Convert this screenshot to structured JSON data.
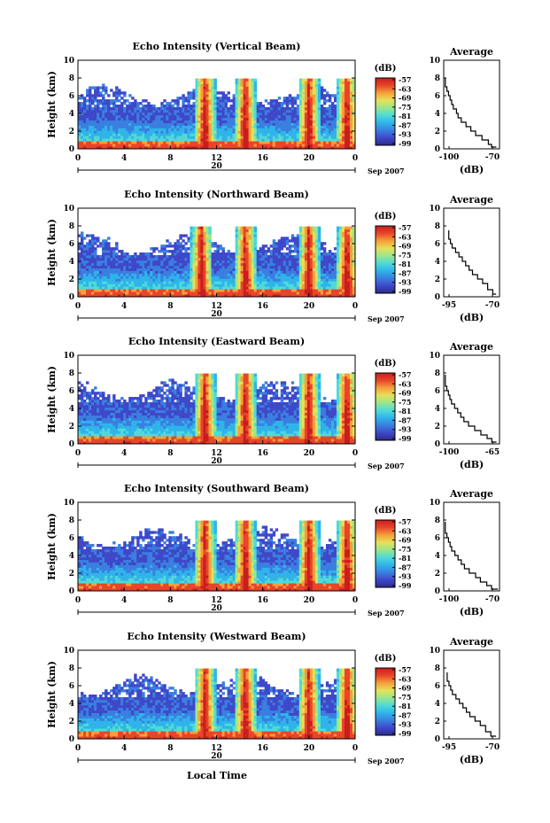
{
  "figure": {
    "xlabel_bottom": "Local Time",
    "date_label": "Sep 2007",
    "colorbar_unit": "(dB)",
    "colorbar_ticks": [
      "-57",
      "-63",
      "-69",
      "-75",
      "-81",
      "-87",
      "-93",
      "-99"
    ],
    "colormap": [
      "#2b2b8a",
      "#3f48c8",
      "#3a7fe0",
      "#2fb4ea",
      "#4fdad8",
      "#9ae68c",
      "#e6e05a",
      "#f5a03a",
      "#e8452a",
      "#c81e1e"
    ],
    "bg_color": "#ffffff"
  },
  "chart_data": [
    {
      "type": "heatmap",
      "title": "Echo Intensity (Vertical Beam)",
      "ylabel": "Height (km)",
      "xlim": [
        0,
        24
      ],
      "ylim": [
        0,
        10
      ],
      "x_ticks": [
        "0",
        "4",
        "8",
        "12",
        "16",
        "20",
        "0"
      ],
      "y_ticks": [
        "0",
        "2",
        "4",
        "6",
        "8",
        "10"
      ],
      "secondary_tick": "20",
      "colorbar": {
        "label": "(dB)",
        "range": [
          -99,
          -57
        ],
        "ticks": [
          "-57",
          "-63",
          "-69",
          "-75",
          "-81",
          "-87",
          "-93",
          "-99"
        ]
      },
      "high_echo_hours": [
        11,
        14.5,
        20,
        23.3
      ],
      "average": {
        "title": "Average",
        "xlabel": "(dB)",
        "xlim": [
          -100,
          -65
        ],
        "x_ticks": [
          "-100",
          "-70"
        ],
        "y_ticks": [
          "0",
          "2",
          "4",
          "6",
          "8",
          "10"
        ],
        "profile": [
          [
            -67,
            0.2
          ],
          [
            -70,
            0.5
          ],
          [
            -72,
            1.0
          ],
          [
            -76,
            1.5
          ],
          [
            -80,
            2.0
          ],
          [
            -83,
            2.5
          ],
          [
            -86,
            3.0
          ],
          [
            -89,
            3.5
          ],
          [
            -91,
            4.0
          ],
          [
            -92,
            4.5
          ],
          [
            -94,
            5.0
          ],
          [
            -95,
            5.5
          ],
          [
            -96,
            6.0
          ],
          [
            -97,
            6.5
          ],
          [
            -98,
            7.0
          ],
          [
            -99,
            7.5
          ],
          [
            -99,
            8.0
          ]
        ]
      }
    },
    {
      "type": "heatmap",
      "title": "Echo Intensity (Northward Beam)",
      "ylabel": "Height (km)",
      "xlim": [
        0,
        24
      ],
      "ylim": [
        0,
        10
      ],
      "x_ticks": [
        "0",
        "4",
        "8",
        "12",
        "16",
        "20",
        "0"
      ],
      "y_ticks": [
        "0",
        "2",
        "4",
        "6",
        "8",
        "10"
      ],
      "secondary_tick": "20",
      "colorbar": {
        "label": "(dB)",
        "range": [
          -99,
          -57
        ],
        "ticks": [
          "-57",
          "-63",
          "-69",
          "-75",
          "-81",
          "-87",
          "-93",
          "-99"
        ]
      },
      "high_echo_hours": [
        10.7,
        14.5,
        20,
        23.3
      ],
      "average": {
        "title": "Average",
        "xlabel": "(dB)",
        "xlim": [
          -100,
          -67
        ],
        "x_ticks": [
          "-95",
          "-70"
        ],
        "y_ticks": [
          "0",
          "2",
          "4",
          "6",
          "8",
          "10"
        ],
        "profile": [
          [
            -69,
            0.3
          ],
          [
            -71,
            0.8
          ],
          [
            -74,
            1.5
          ],
          [
            -77,
            2.0
          ],
          [
            -80,
            2.5
          ],
          [
            -83,
            3.0
          ],
          [
            -85,
            3.5
          ],
          [
            -87,
            4.0
          ],
          [
            -89,
            4.5
          ],
          [
            -91,
            5.0
          ],
          [
            -93,
            5.5
          ],
          [
            -95,
            6.0
          ],
          [
            -96,
            6.5
          ],
          [
            -97,
            7.0
          ],
          [
            -97,
            7.5
          ]
        ]
      }
    },
    {
      "type": "heatmap",
      "title": "Echo Intensity (Eastward Beam)",
      "ylabel": "Height (km)",
      "xlim": [
        0,
        24
      ],
      "ylim": [
        0,
        10
      ],
      "x_ticks": [
        "0",
        "4",
        "8",
        "12",
        "16",
        "20",
        "0"
      ],
      "y_ticks": [
        "0",
        "2",
        "4",
        "6",
        "8",
        "10"
      ],
      "secondary_tick": "20",
      "colorbar": {
        "label": "(dB)",
        "range": [
          -99,
          -57
        ],
        "ticks": [
          "-57",
          "-63",
          "-69",
          "-75",
          "-81",
          "-87",
          "-93",
          "-99"
        ]
      },
      "high_echo_hours": [
        11,
        14.5,
        20,
        23.3
      ],
      "average": {
        "title": "Average",
        "xlabel": "(dB)",
        "xlim": [
          -100,
          -64
        ],
        "x_ticks": [
          "-100",
          "-65"
        ],
        "y_ticks": [
          "0",
          "2",
          "4",
          "6",
          "8",
          "10"
        ],
        "profile": [
          [
            -66,
            0.2
          ],
          [
            -69,
            0.6
          ],
          [
            -72,
            1.0
          ],
          [
            -76,
            1.5
          ],
          [
            -80,
            2.0
          ],
          [
            -84,
            2.5
          ],
          [
            -87,
            3.0
          ],
          [
            -89,
            3.5
          ],
          [
            -91,
            4.0
          ],
          [
            -93,
            4.5
          ],
          [
            -95,
            5.0
          ],
          [
            -96,
            5.5
          ],
          [
            -97,
            6.0
          ],
          [
            -98,
            6.5
          ],
          [
            -99,
            7.0
          ],
          [
            -99,
            7.8
          ]
        ]
      }
    },
    {
      "type": "heatmap",
      "title": "Echo Intensity (Southward Beam)",
      "ylabel": "Height (km)",
      "xlim": [
        0,
        24
      ],
      "ylim": [
        0,
        10
      ],
      "x_ticks": [
        "0",
        "4",
        "8",
        "12",
        "16",
        "20",
        "0"
      ],
      "y_ticks": [
        "0",
        "2",
        "4",
        "6",
        "8",
        "10"
      ],
      "secondary_tick": "20",
      "colorbar": {
        "label": "(dB)",
        "range": [
          -99,
          -57
        ],
        "ticks": [
          "-57",
          "-63",
          "-69",
          "-75",
          "-81",
          "-87",
          "-93",
          "-99"
        ]
      },
      "high_echo_hours": [
        11,
        14.5,
        20,
        23.3
      ],
      "average": {
        "title": "Average",
        "xlabel": "(dB)",
        "xlim": [
          -100,
          -65
        ],
        "x_ticks": [
          "-100",
          "-70"
        ],
        "y_ticks": [
          "0",
          "2",
          "4",
          "6",
          "8",
          "10"
        ],
        "profile": [
          [
            -66,
            0.2
          ],
          [
            -70,
            0.6
          ],
          [
            -73,
            1.0
          ],
          [
            -77,
            1.5
          ],
          [
            -80,
            2.0
          ],
          [
            -84,
            2.5
          ],
          [
            -87,
            3.0
          ],
          [
            -89,
            3.5
          ],
          [
            -91,
            4.0
          ],
          [
            -93,
            4.5
          ],
          [
            -95,
            5.0
          ],
          [
            -96,
            5.5
          ],
          [
            -97,
            6.0
          ],
          [
            -98,
            6.5
          ],
          [
            -99,
            7.0
          ],
          [
            -99,
            7.8
          ]
        ]
      }
    },
    {
      "type": "heatmap",
      "title": "Echo Intensity (Westward Beam)",
      "ylabel": "Height (km)",
      "xlim": [
        0,
        24
      ],
      "ylim": [
        0,
        10
      ],
      "x_ticks": [
        "0",
        "4",
        "8",
        "12",
        "16",
        "20",
        "0"
      ],
      "y_ticks": [
        "0",
        "2",
        "4",
        "6",
        "8",
        "10"
      ],
      "secondary_tick": "20",
      "colorbar": {
        "label": "(dB)",
        "range": [
          -99,
          -57
        ],
        "ticks": [
          "-57",
          "-63",
          "-69",
          "-75",
          "-81",
          "-87",
          "-93",
          "-99"
        ]
      },
      "high_echo_hours": [
        11,
        14.5,
        20,
        23.3
      ],
      "average": {
        "title": "Average",
        "xlabel": "(dB)",
        "xlim": [
          -98,
          -66
        ],
        "x_ticks": [
          "-95",
          "-70"
        ],
        "y_ticks": [
          "0",
          "2",
          "4",
          "6",
          "8",
          "10"
        ],
        "profile": [
          [
            -68,
            0.3
          ],
          [
            -71,
            0.8
          ],
          [
            -74,
            1.5
          ],
          [
            -77,
            2.0
          ],
          [
            -80,
            2.5
          ],
          [
            -83,
            3.0
          ],
          [
            -85,
            3.5
          ],
          [
            -87,
            4.0
          ],
          [
            -89,
            4.5
          ],
          [
            -91,
            5.0
          ],
          [
            -93,
            5.5
          ],
          [
            -94,
            6.0
          ],
          [
            -95,
            6.5
          ],
          [
            -96,
            7.0
          ],
          [
            -96,
            7.5
          ]
        ]
      }
    }
  ]
}
